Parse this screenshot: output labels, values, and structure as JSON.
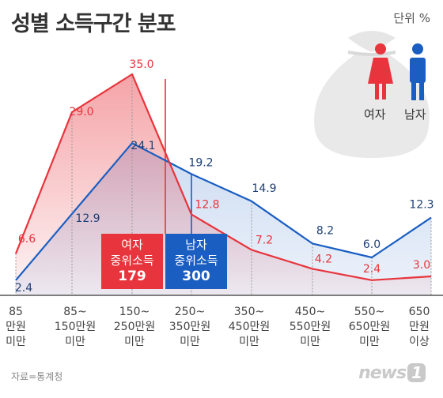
{
  "title": "성별 소득구간 분포",
  "unit": "단위 %",
  "source": "자료=통계청",
  "logo": {
    "text": "news",
    "badge": "1"
  },
  "legend": {
    "female": "여자",
    "male": "남자"
  },
  "median": {
    "female": {
      "line1": "여자",
      "line2": "중위소득",
      "value": "179"
    },
    "male": {
      "line1": "남자",
      "line2": "중위소득",
      "value": "300"
    }
  },
  "colors": {
    "female": "#e8343c",
    "male": "#1a5ec2",
    "male_fill": "#dde6f3",
    "female_fill": "#f4cccd"
  },
  "chart_data": {
    "type": "line",
    "title": "성별 소득구간 분포",
    "ylabel": "",
    "unit": "%",
    "categories": [
      "85\n만원\n미만",
      "85~\n150만원\n미만",
      "150~\n250만원\n미만",
      "250~\n350만원\n미만",
      "350~\n450만원\n미만",
      "450~\n550만원\n미만",
      "550~\n650만원\n미만",
      "650\n만원\n이상"
    ],
    "series": [
      {
        "name": "여자",
        "values": [
          6.6,
          29.0,
          35.0,
          12.8,
          7.2,
          4.2,
          2.4,
          3.0
        ],
        "labels": [
          "6.6",
          "29.0",
          "35.0",
          "12.8",
          "7.2",
          "4.2",
          "2.4",
          "3.0"
        ]
      },
      {
        "name": "남자",
        "values": [
          2.4,
          12.9,
          24.1,
          19.2,
          14.9,
          8.2,
          6.0,
          12.3
        ],
        "labels": [
          "2.4",
          "12.9",
          "24.1",
          "19.2",
          "14.9",
          "8.2",
          "6.0",
          "12.3"
        ]
      }
    ],
    "ylim": [
      0,
      38
    ],
    "grid": false,
    "legend": "top-right"
  }
}
